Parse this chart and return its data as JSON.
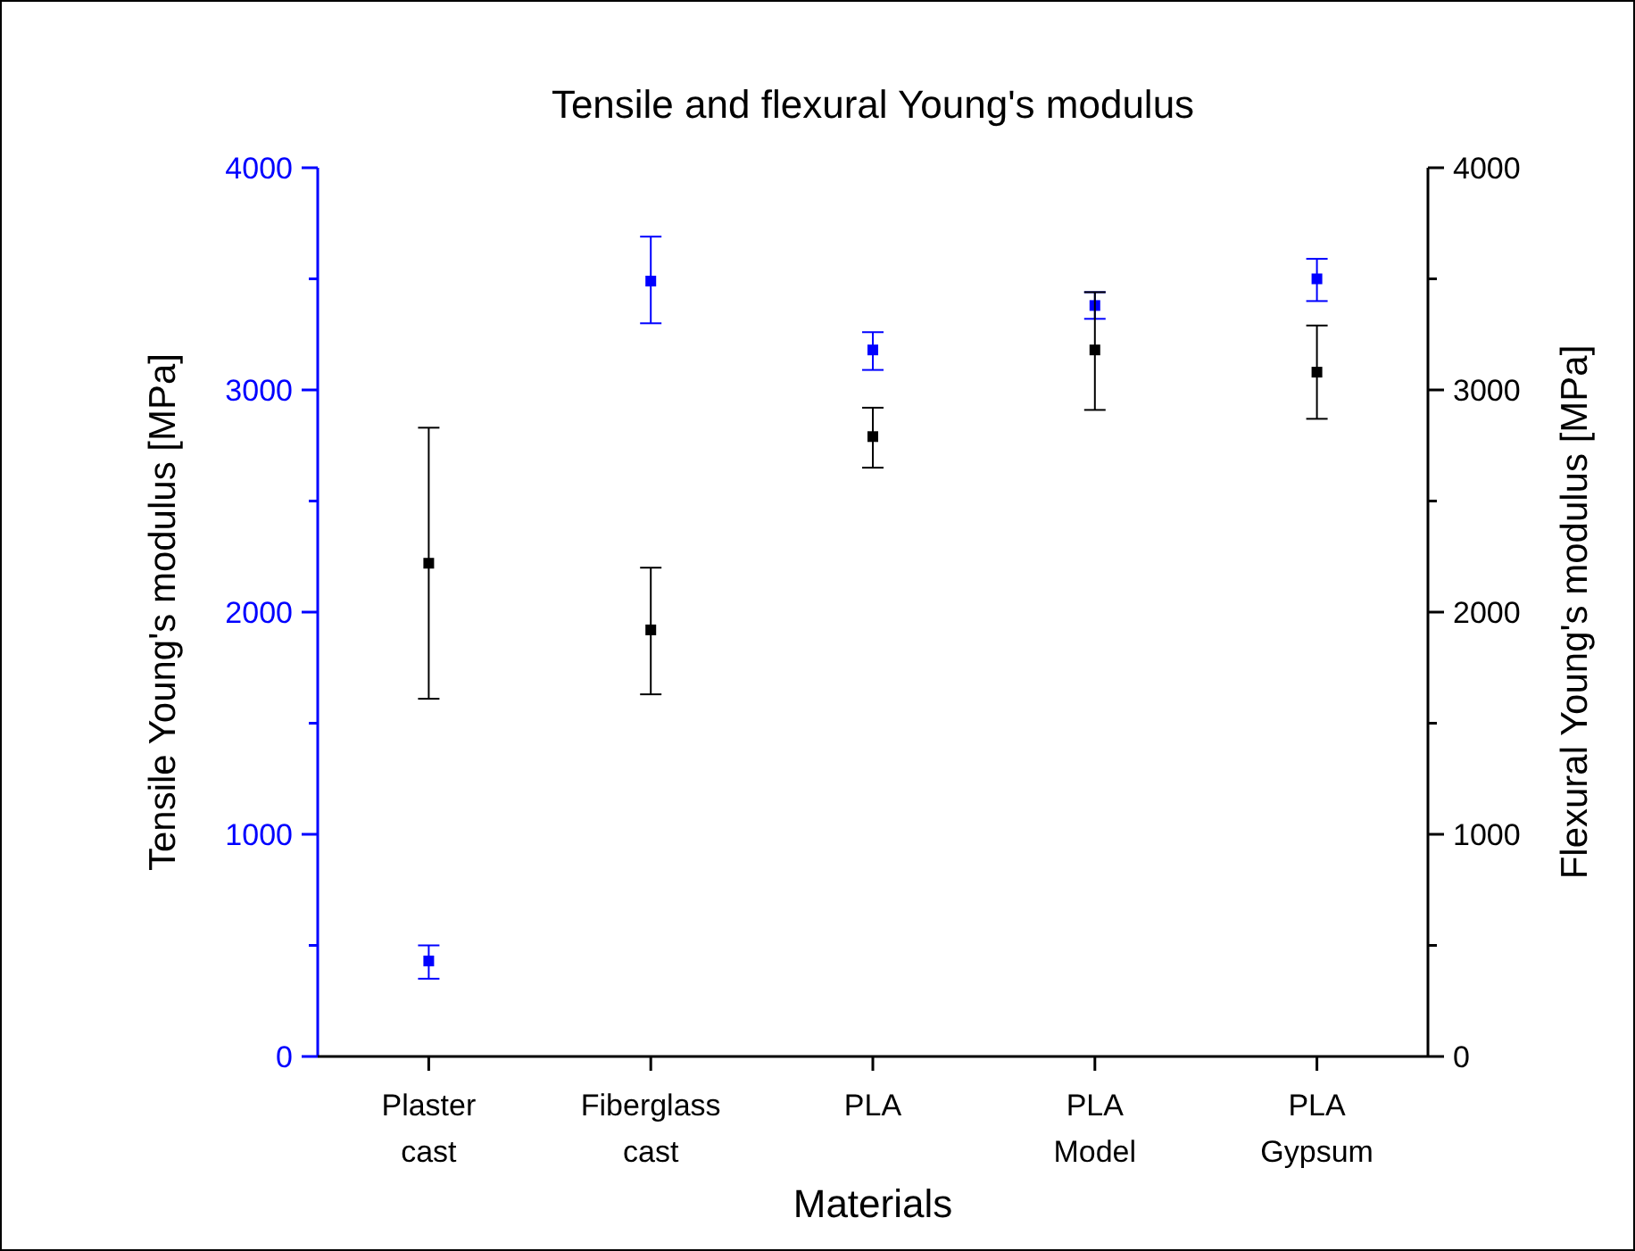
{
  "chart_data": {
    "type": "scatter",
    "title": "Tensile and flexural Young's modulus",
    "xlabel": "Materials",
    "ylabel": "Tensile Young's modulus [MPa]",
    "y2label": "Flexural Young's modulus [MPa]",
    "categories": [
      "Plaster\ncast",
      "Fiberglass\ncast",
      "PLA",
      "PLA\nModel",
      "PLA\nGypsum"
    ],
    "series": [
      {
        "color": "#0000ff",
        "values": [
          430,
          3490,
          3180,
          3380,
          3500
        ],
        "errors": [
          [
            350,
            500
          ],
          [
            3300,
            3690
          ],
          [
            3090,
            3260
          ],
          [
            3320,
            3440
          ],
          [
            3400,
            3590
          ]
        ]
      },
      {
        "color": "#000000",
        "axis": "y2",
        "values": [
          2220,
          1920,
          2790,
          3180,
          3080
        ],
        "errors": [
          [
            1610,
            2830
          ],
          [
            1630,
            2200
          ],
          [
            2650,
            2920
          ],
          [
            2910,
            3440
          ],
          [
            2870,
            3290
          ]
        ]
      }
    ],
    "ylim": [
      0,
      4000
    ],
    "yticks": [
      0,
      {
        "value": 500,
        "label": null
      },
      1000,
      {
        "value": 1500,
        "label": null
      },
      2000,
      {
        "value": 2500,
        "label": null
      },
      3000,
      {
        "value": 3500,
        "label": null
      },
      4000
    ],
    "y2lim": [
      0,
      4000
    ],
    "y2ticks": [
      0,
      {
        "value": 500,
        "label": null
      },
      1000,
      {
        "value": 1500,
        "label": null
      },
      2000,
      {
        "value": 2500,
        "label": null
      },
      3000,
      {
        "value": 3500,
        "label": null
      },
      4000
    ],
    "marker": "square",
    "grid": false
  }
}
